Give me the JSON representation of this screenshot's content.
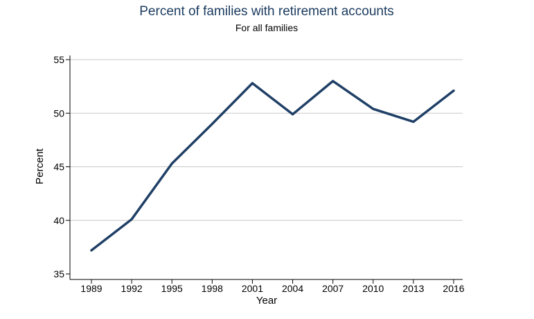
{
  "chart_data": {
    "type": "line",
    "title": "Percent of families with retirement accounts",
    "subtitle": "For all families",
    "xlabel": "Year",
    "ylabel": "Percent",
    "x": [
      "1989",
      "1992",
      "1995",
      "1998",
      "2001",
      "2004",
      "2007",
      "2010",
      "2013",
      "2016"
    ],
    "series": [
      {
        "values": [
          37.2,
          40.1,
          45.3,
          49.0,
          52.8,
          49.9,
          53.0,
          50.4,
          49.2,
          52.1
        ]
      }
    ],
    "ylim": [
      35,
      55
    ],
    "yticks": [
      35,
      40,
      45,
      50,
      55
    ],
    "grid": true,
    "colors": {
      "line": "#1f3f66",
      "grid": "#c8c8c8",
      "title": "#1a3a5e"
    }
  }
}
